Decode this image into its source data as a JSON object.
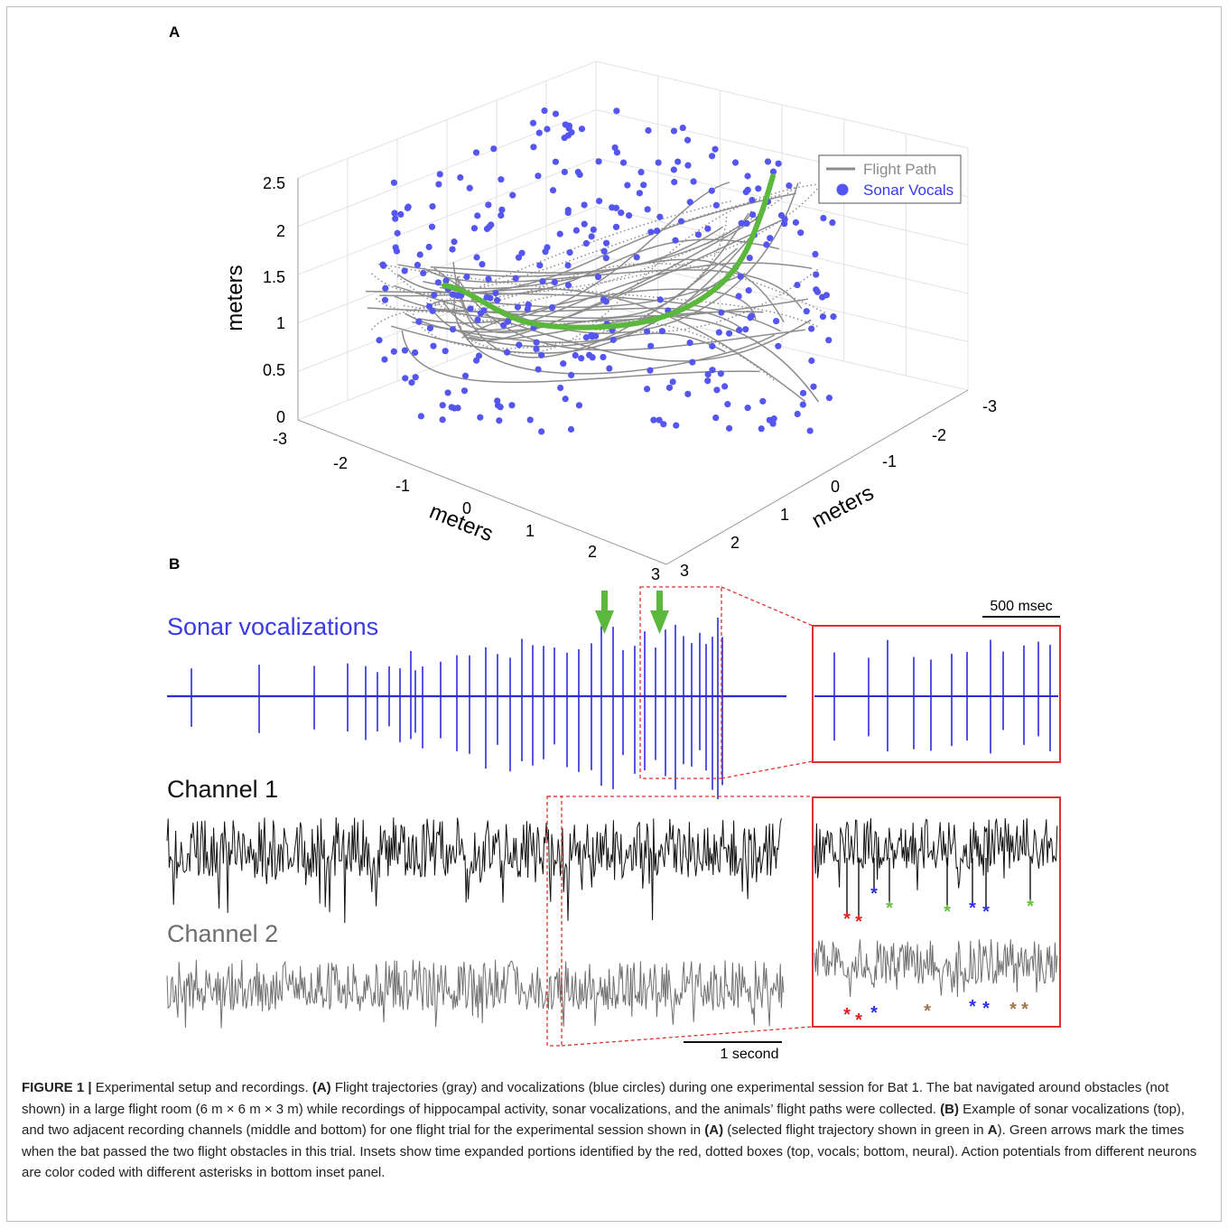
{
  "figure": {
    "panel_a_label": "A",
    "panel_b_label": "B",
    "panel_a": {
      "z_axis_label": "meters",
      "x_axis_label": "meters",
      "y_axis_label": "meters",
      "z_ticks": [
        "0",
        "0.5",
        "1",
        "1.5",
        "2",
        "2.5"
      ],
      "x_ticks": [
        "-3",
        "-2",
        "-1",
        "0",
        "1",
        "2",
        "3"
      ],
      "y_ticks": [
        "-3",
        "-2",
        "-1",
        "0",
        "1",
        "2",
        "3"
      ],
      "legend": [
        {
          "label": "Flight Path",
          "color": "#8c8c8c",
          "marker": "line"
        },
        {
          "label": "Sonar Vocals",
          "color": "#5555f0",
          "marker": "dot"
        }
      ],
      "highlight_color": "#5cb83c"
    },
    "panel_b": {
      "vocal_label": "Sonar vocalizations",
      "channel1_label": "Channel 1",
      "channel2_label": "Channel 2",
      "scale_inset": "500 msec",
      "scale_main": "1 second",
      "vocal_color": "#2b2bd9",
      "channel1_color": "#111111",
      "channel2_color": "#6e6e6e",
      "inset_border_color": "#e03030",
      "arrow_color": "#5cb83c",
      "spike_marker": "*",
      "spike_colors": {
        "red": "#e02020",
        "blue": "#3030e0",
        "green": "#66c040",
        "brown": "#a0784a"
      }
    }
  },
  "caption": {
    "heading": "FIGURE 1 |",
    "intro": " Experimental setup and recordings. ",
    "a_ref": "(A)",
    "a_text": " Flight trajectories (gray) and vocalizations (blue circles) during one experimental session for Bat 1. The bat navigated around obstacles (not shown) in a large flight room (6 m × 6 m × 3 m) while recordings of hippocampal activity, sonar vocalizations, and the animals’ flight paths were collected. ",
    "b_ref": "(B)",
    "b_text": " Example of sonar vocalizations (top), and two adjacent recording channels (middle and bottom) for one flight trial for the experimental session shown in ",
    "a_ref2": "(A)",
    "b_text2": " (selected flight trajectory shown in green in ",
    "a_ref3": "A",
    "b_text3": "). Green arrows mark the times when the bat passed the two flight obstacles in this trial. Insets show time expanded portions identified by the red, dotted boxes (top, vocals; bottom, neural). Action potentials from different neurons are color coded with different asterisks in bottom inset panel."
  }
}
